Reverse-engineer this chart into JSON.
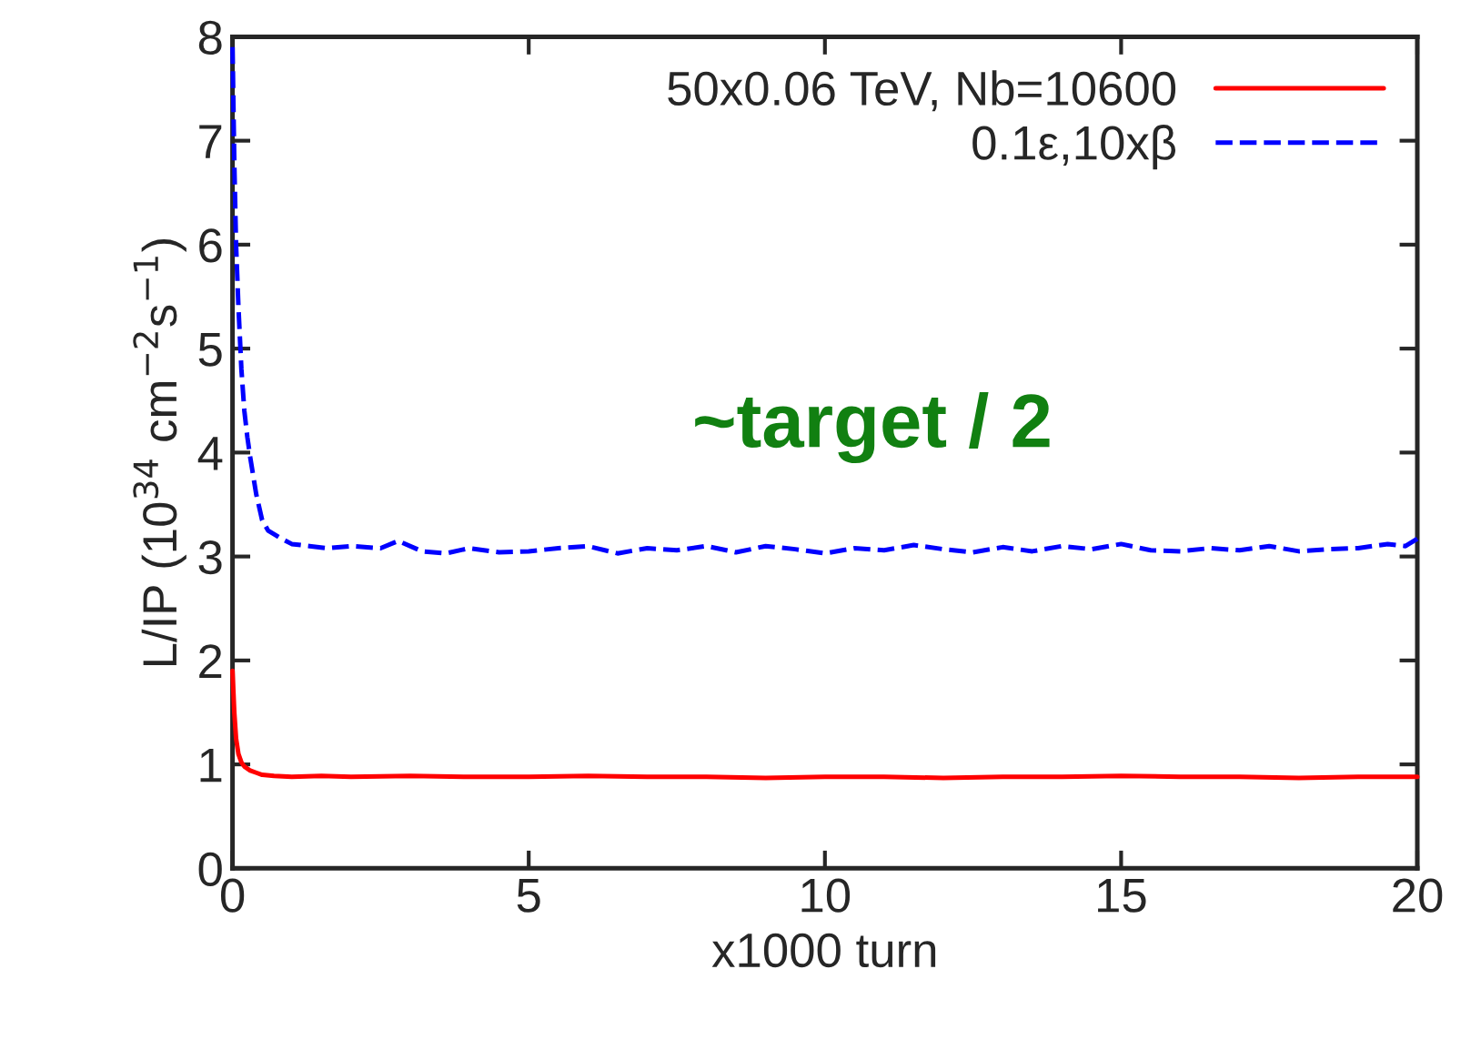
{
  "chart_data": {
    "type": "line",
    "xlabel": "x1000 turn",
    "ylabel": "L/IP (10$^{34}$ cm$^{−2}$s$^{−1}$)",
    "annotations": [
      "~target / 2"
    ],
    "xlim": [
      0,
      20
    ],
    "xticks": [
      0,
      5,
      10,
      15,
      20
    ],
    "ylim": [
      0,
      8
    ],
    "yticks": [
      0,
      1,
      2,
      3,
      4,
      5,
      6,
      7,
      8
    ],
    "grid": false,
    "legend": "top right",
    "series": [
      {
        "name": "50x0.06 TeV, Nb=10600",
        "color": "#ff0000",
        "line_style": "solid",
        "x": [
          0,
          0.03,
          0.06,
          0.1,
          0.15,
          0.2,
          0.3,
          0.4,
          0.5,
          0.7,
          1,
          1.5,
          2,
          3,
          4,
          5,
          6,
          7,
          8,
          9,
          10,
          11,
          12,
          13,
          14,
          15,
          16,
          17,
          18,
          19,
          20
        ],
        "values": [
          1.9,
          1.5,
          1.25,
          1.1,
          1.02,
          0.98,
          0.94,
          0.92,
          0.9,
          0.89,
          0.88,
          0.89,
          0.88,
          0.89,
          0.88,
          0.88,
          0.89,
          0.88,
          0.88,
          0.87,
          0.88,
          0.88,
          0.87,
          0.88,
          0.88,
          0.89,
          0.88,
          0.88,
          0.87,
          0.88,
          0.88
        ]
      },
      {
        "name": "0.1ε,10xβ",
        "color": "#0000ff",
        "line_style": "dashed",
        "x": [
          0,
          0.03,
          0.06,
          0.1,
          0.15,
          0.2,
          0.25,
          0.3,
          0.4,
          0.5,
          0.6,
          0.8,
          1,
          1.3,
          1.6,
          2,
          2.5,
          2.8,
          3.2,
          3.6,
          4,
          4.5,
          5,
          5.5,
          6,
          6.5,
          7,
          7.5,
          8,
          8.5,
          9,
          9.5,
          10,
          10.5,
          11,
          11.5,
          12,
          12.5,
          13,
          13.5,
          14,
          14.5,
          15,
          15.5,
          16,
          16.5,
          17,
          17.5,
          18,
          18.5,
          19,
          19.5,
          19.8,
          20
        ],
        "values": [
          7.9,
          6.8,
          6.0,
          5.4,
          4.8,
          4.4,
          4.15,
          3.95,
          3.6,
          3.35,
          3.25,
          3.18,
          3.12,
          3.1,
          3.08,
          3.1,
          3.08,
          3.15,
          3.05,
          3.03,
          3.08,
          3.04,
          3.05,
          3.08,
          3.1,
          3.03,
          3.08,
          3.06,
          3.1,
          3.04,
          3.1,
          3.07,
          3.03,
          3.08,
          3.06,
          3.11,
          3.07,
          3.04,
          3.09,
          3.05,
          3.1,
          3.07,
          3.12,
          3.06,
          3.05,
          3.08,
          3.06,
          3.1,
          3.05,
          3.07,
          3.08,
          3.12,
          3.1,
          3.17
        ]
      }
    ]
  }
}
